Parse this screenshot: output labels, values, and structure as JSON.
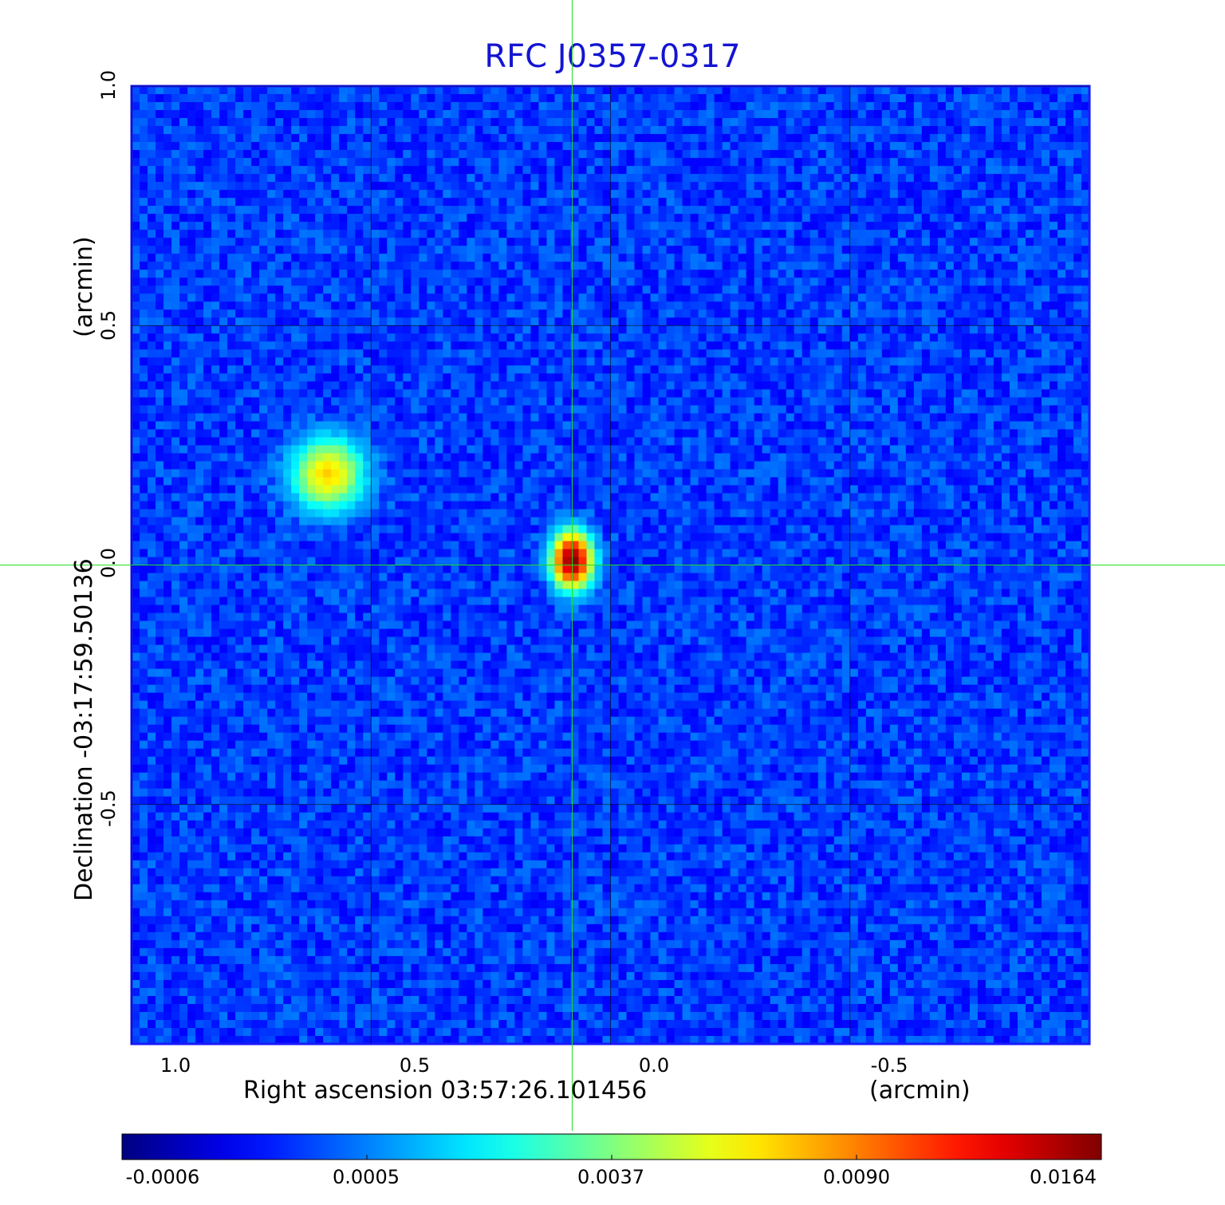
{
  "chart_data": {
    "type": "heatmap",
    "title": "RFC J0357-0317",
    "xlabel": "Right ascension  03:57:26.101456",
    "xunit": "(arcmin)",
    "ylabel": "Declination  -03:17:59.50136",
    "yunit": "(arcmin)",
    "xlim": [
      1.0,
      -1.0
    ],
    "ylim": [
      -1.0,
      1.0
    ],
    "x_ticks": [
      "1.0",
      "0.5",
      "0.0",
      "-0.5"
    ],
    "x_tick_values": [
      1.0,
      0.5,
      0.0,
      -0.5
    ],
    "y_ticks": [
      "1.0",
      "0.5",
      "0.0",
      "-0.5"
    ],
    "y_tick_values": [
      1.0,
      0.5,
      0.0,
      -0.5
    ],
    "grid": true,
    "colormap": "jet",
    "colorbar": {
      "ticks": [
        "-0.0006",
        "0.0005",
        "0.0037",
        "0.0090",
        "0.0164"
      ],
      "colors": [
        "#00007f",
        "#0000ff",
        "#00ffff",
        "#ffff00",
        "#ff0000",
        "#7f0000"
      ]
    },
    "sources": [
      {
        "x": 0.59,
        "y": 0.19,
        "peak": 0.007,
        "label": ""
      },
      {
        "x": 0.08,
        "y": 0.01,
        "peak": 0.0164,
        "label": ""
      }
    ],
    "crosshair": {
      "x": 0.08,
      "y": 0.0
    },
    "crosshair_color": "#22dd22",
    "background_level": 0.0002
  }
}
